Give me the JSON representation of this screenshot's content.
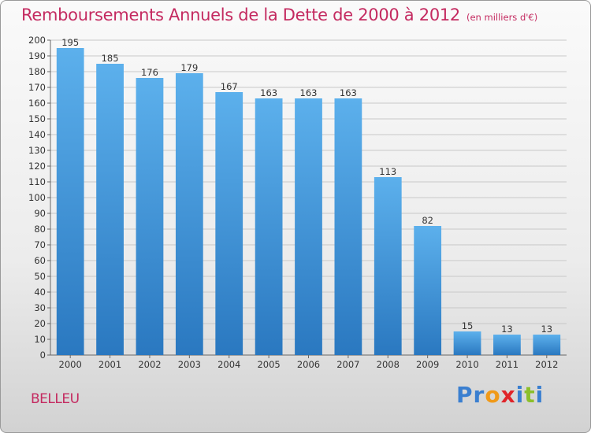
{
  "header": {
    "title": "Remboursements Annuels de la Dette de 2000 à 2012",
    "subtitle": "(en milliers d'€)"
  },
  "location": "BELLEU",
  "logo": {
    "text": "Proxiti",
    "letters": [
      "P",
      "r",
      "o",
      "x",
      "i",
      "t",
      "i"
    ],
    "colors": [
      "#3a7fd0",
      "#3a7fd0",
      "#f09a1a",
      "#e0242a",
      "#3a7fd0",
      "#8cbf2a",
      "#3a7fd0"
    ]
  },
  "colors": {
    "bar_top": "#5cb0ec",
    "bar_bottom": "#2a78c0",
    "title": "#c42a60",
    "grid": "#c8c8c8"
  },
  "chart_data": {
    "type": "bar",
    "title": "Remboursements Annuels de la Dette de 2000 à 2012",
    "categories": [
      "2000",
      "2001",
      "2002",
      "2003",
      "2004",
      "2005",
      "2006",
      "2007",
      "2008",
      "2009",
      "2010",
      "2011",
      "2012"
    ],
    "values": [
      195,
      185,
      176,
      179,
      167,
      163,
      163,
      163,
      113,
      82,
      15,
      13,
      13
    ],
    "xlabel": "",
    "ylabel": "",
    "ylim": [
      0,
      200
    ],
    "ytick_step": 10,
    "grid": true,
    "legend": "none"
  }
}
